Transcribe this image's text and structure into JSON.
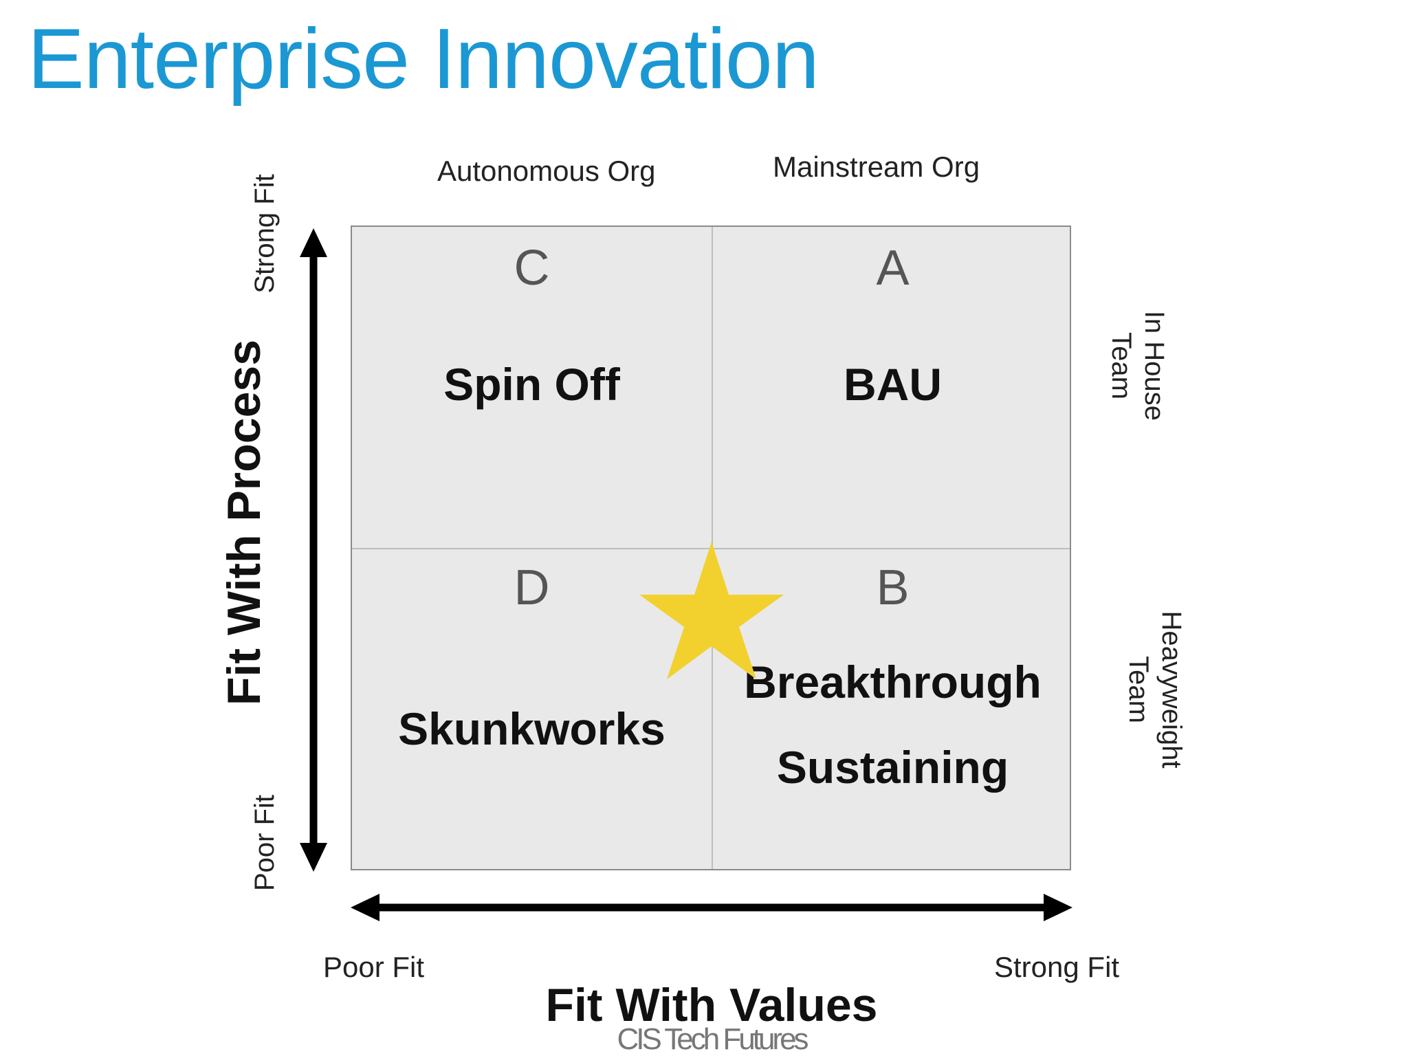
{
  "title": "Enterprise Innovation",
  "columns": {
    "left": "Autonomous Org",
    "right": "Mainstream Org"
  },
  "rows": {
    "top": "In House Team",
    "top_lines": [
      "In House",
      "Team"
    ],
    "bottom": "Heavyweight Team",
    "bottom_lines": [
      "Heavyweight",
      "Team"
    ]
  },
  "y_axis": {
    "title": "Fit With Process",
    "high": "Strong Fit",
    "low": "Poor Fit"
  },
  "x_axis": {
    "title": "Fit With Values",
    "low": "Poor Fit",
    "high": "Strong Fit"
  },
  "quadrants": {
    "c": {
      "letter": "C",
      "name": "Spin Off"
    },
    "a": {
      "letter": "A",
      "name": "BAU"
    },
    "d": {
      "letter": "D",
      "name": "Skunkworks"
    },
    "b": {
      "letter": "B",
      "name_line1": "Breakthrough",
      "name_line2": "Sustaining"
    }
  },
  "marker": {
    "icon": "star-icon",
    "color": "#f2d12e"
  },
  "colors": {
    "title": "#1b98d3",
    "quadrant_fill": "#e9e9ea",
    "arrow": "#000000"
  },
  "brand": "CIS Tech Futures"
}
